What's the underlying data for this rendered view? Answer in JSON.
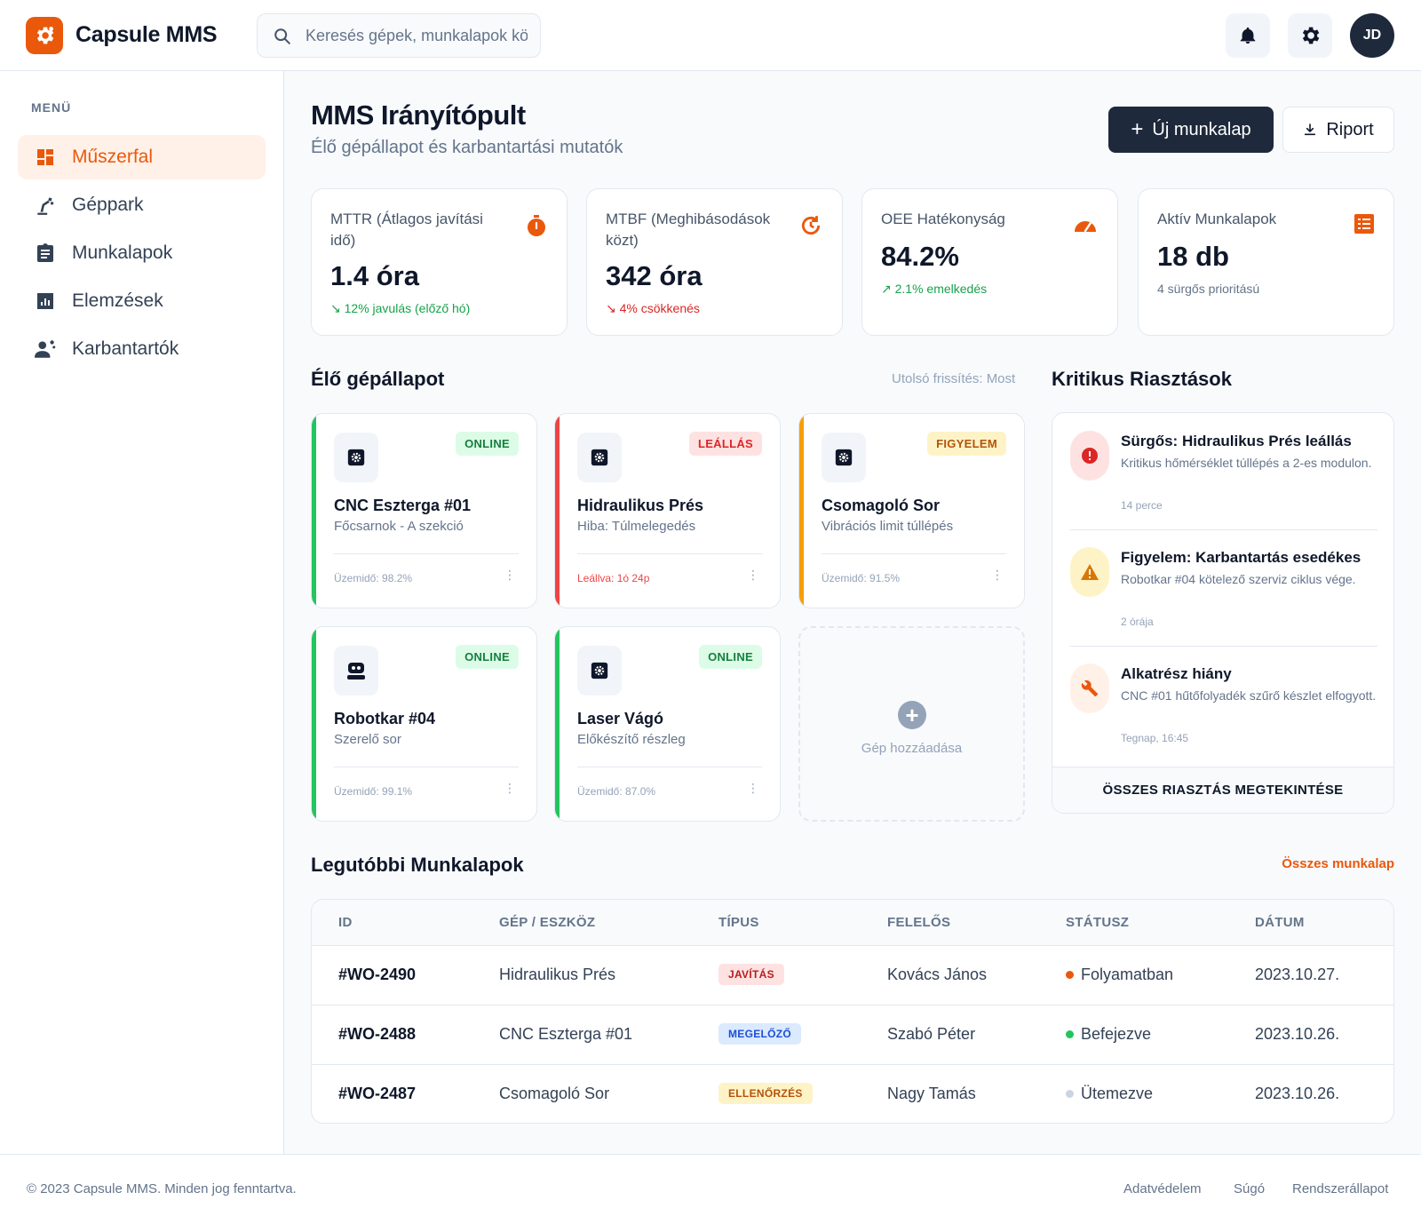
{
  "app": {
    "name": "Capsule MMS",
    "search_placeholder": "Keresés gépek, munkalapok között...",
    "user_initials": "JD",
    "icons": [
      "settings-icon",
      "search-icon",
      "bell-icon",
      "gear-icon"
    ]
  },
  "colors": {
    "accent": "#ea580c",
    "dark": "#1e293b",
    "success": "#22c55e",
    "danger": "#ef4444",
    "warning": "#f59e0b"
  },
  "sidebar": {
    "title": "MENÜ",
    "items": [
      {
        "label": "Műszerfal",
        "icon": "dashboard-icon",
        "active": true
      },
      {
        "label": "Géppark",
        "icon": "robot-arm-icon",
        "active": false
      },
      {
        "label": "Munkalapok",
        "icon": "clipboard-icon",
        "active": false
      },
      {
        "label": "Elemzések",
        "icon": "analytics-icon",
        "active": false
      },
      {
        "label": "Karbantartók",
        "icon": "engineer-icon",
        "active": false
      }
    ]
  },
  "page": {
    "title": "MMS Irányítópult",
    "subtitle": "Élő gépállapot és karbantartási mutatók",
    "new_button": "Új munkalap",
    "report_button": "Riport"
  },
  "kpis": [
    {
      "label": "MTTR (Átlagos javítási idő)",
      "value": "1.4 óra",
      "trend": "12% javulás (előző hó)",
      "icon": "timer-icon"
    },
    {
      "label": "MTBF (Meghibásodások közt)",
      "value": "342 óra",
      "trend": "4% csökkenés",
      "icon": "history-icon"
    },
    {
      "label": "OEE Hatékonyság",
      "value": "84.2%",
      "trend": "2.1% emelkedés",
      "icon": "speed-icon"
    },
    {
      "label": "Aktív Munkalapok",
      "value": "18 db",
      "trend": "4 sürgős prioritású",
      "icon": "list-icon"
    }
  ],
  "machines_section": {
    "title": "Élő gépállapot",
    "refresh": "Utolsó frissítés: Most",
    "add_label": "Gép hozzáadása"
  },
  "machines": [
    {
      "name": "CNC Eszterga #01",
      "location": "Főcsarnok - A szekció",
      "status": "ONLINE",
      "footer": "Üzemidő: 98.2%",
      "icon": "settings-icon"
    },
    {
      "name": "Hidraulikus Prés",
      "location": "Hiba: Túlmelegedés",
      "status": "LEÁLLÁS",
      "footer": "Leállva: 1ó 24p",
      "icon": "settings-icon"
    },
    {
      "name": "Csomagoló Sor",
      "location": "Vibrációs limit túllépés",
      "status": "FIGYELEM",
      "footer": "Üzemidő: 91.5%",
      "icon": "settings-icon"
    },
    {
      "name": "Robotkar #04",
      "location": "Szerelő sor",
      "status": "ONLINE",
      "footer": "Üzemidő: 99.1%",
      "icon": "robot-icon"
    },
    {
      "name": "Laser Vágó",
      "location": "Előkészítő részleg",
      "status": "ONLINE",
      "footer": "Üzemidő: 87.0%",
      "icon": "settings-icon"
    }
  ],
  "alerts_section": {
    "title": "Kritikus Riasztások",
    "footer": "ÖSSZES RIASZTÁS MEGTEKINTÉSE"
  },
  "alerts": [
    {
      "title": "Sürgős: Hidraulikus Prés leállás",
      "desc": "Kritikus hőmérséklet túllépés a 2-es modulon.",
      "time": "14 perce",
      "icon": "error-icon"
    },
    {
      "title": "Figyelem: Karbantartás esedékes",
      "desc": "Robotkar #04 kötelező szerviz ciklus vége.",
      "time": "2 órája",
      "icon": "warning-icon"
    },
    {
      "title": "Alkatrész hiány",
      "desc": "CNC #01 hűtőfolyadék szűrő készlet elfogyott.",
      "time": "Tegnap, 16:45",
      "icon": "wrench-icon"
    }
  ],
  "workorders": {
    "title": "Legutóbbi Munkalapok",
    "link": "Összes munkalap",
    "headers": [
      "ID",
      "GÉP / ESZKÖZ",
      "TÍPUS",
      "FELELŐS",
      "STÁTUSZ",
      "DÁTUM"
    ],
    "rows": [
      {
        "id": "#WO-2490",
        "machine": "Hidraulikus Prés",
        "type": "JAVÍTÁS",
        "owner": "Kovács János",
        "status": "Folyamatban",
        "date": "2023.10.27."
      },
      {
        "id": "#WO-2488",
        "machine": "CNC Eszterga #01",
        "type": "MEGELŐZŐ",
        "owner": "Szabó Péter",
        "status": "Befejezve",
        "date": "2023.10.26."
      },
      {
        "id": "#WO-2487",
        "machine": "Csomagoló Sor",
        "type": "ELLENŐRZÉS",
        "owner": "Nagy Tamás",
        "status": "Ütemezve",
        "date": "2023.10.26."
      }
    ]
  },
  "footer": {
    "copyright": "© 2023 Capsule MMS. Minden jog fenntartva.",
    "links": [
      "Adatvédelem",
      "Súgó",
      "Rendszerállapot"
    ]
  }
}
